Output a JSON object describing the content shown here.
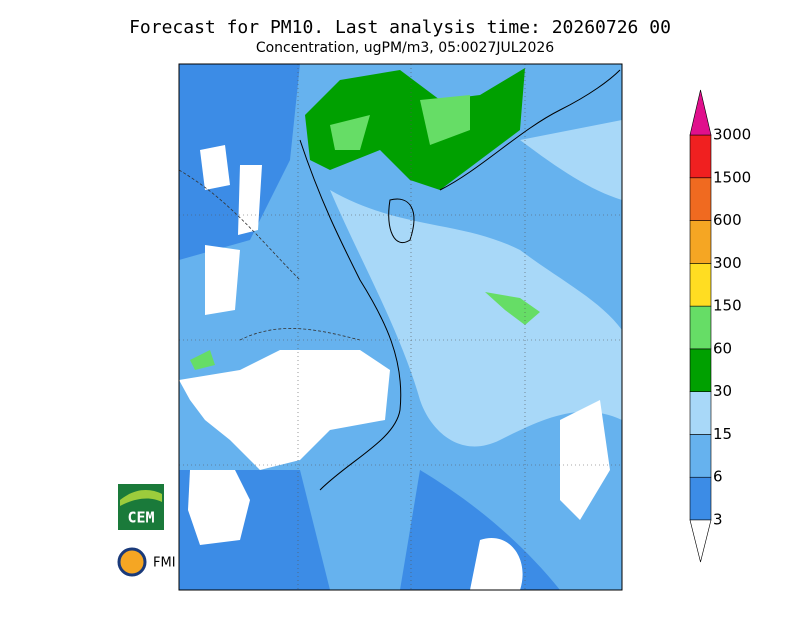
{
  "header": {
    "title": "Forecast for PM10. Last analysis time: 20260726 00",
    "subtitle": "Concentration, ugPM/m3, 05:0027JUL2026"
  },
  "colorbar": {
    "levels": [
      3,
      6,
      15,
      30,
      60,
      150,
      300,
      600,
      1500,
      3000
    ],
    "colors": [
      "#3c8ce6",
      "#66b2ee",
      "#a8d8f8",
      "#00a000",
      "#66dd66",
      "#ffdd22",
      "#f5a623",
      "#f06a20",
      "#f02020"
    ],
    "over_color": "#e0108c",
    "under_color": "#ffffff"
  },
  "logos": {
    "cem": "CEM",
    "fmi": "FMI"
  }
}
